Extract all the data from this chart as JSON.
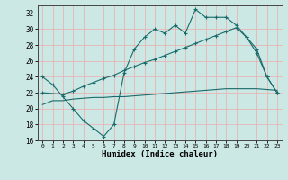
{
  "xlabel": "Humidex (Indice chaleur)",
  "bg_color": "#cce8e4",
  "grid_color": "#e8b4b4",
  "line_color": "#1a6b6b",
  "xlim": [
    -0.5,
    23.5
  ],
  "ylim": [
    16,
    33
  ],
  "xticks": [
    0,
    1,
    2,
    3,
    4,
    5,
    6,
    7,
    8,
    9,
    10,
    11,
    12,
    13,
    14,
    15,
    16,
    17,
    18,
    19,
    20,
    21,
    22,
    23
  ],
  "yticks": [
    16,
    18,
    20,
    22,
    24,
    26,
    28,
    30,
    32
  ],
  "line1_x": [
    0,
    1,
    2,
    3,
    4,
    5,
    6,
    7,
    8,
    9,
    10,
    11,
    12,
    13,
    14,
    15,
    16,
    17,
    18,
    19,
    20,
    21,
    22,
    23
  ],
  "line1_y": [
    24,
    23,
    21.5,
    20,
    18.5,
    17.5,
    16.5,
    18,
    24.5,
    27.5,
    29,
    30,
    29.5,
    30.5,
    29.5,
    32.5,
    31.5,
    31.5,
    31.5,
    30.5,
    29,
    27,
    24,
    22
  ],
  "line2_x": [
    0,
    2,
    3,
    4,
    5,
    6,
    7,
    8,
    9,
    10,
    11,
    12,
    13,
    14,
    15,
    16,
    17,
    18,
    19,
    20,
    21,
    22,
    23
  ],
  "line2_y": [
    22,
    21.8,
    22.2,
    22.8,
    23.3,
    23.8,
    24.2,
    24.8,
    25.3,
    25.8,
    26.2,
    26.7,
    27.2,
    27.7,
    28.2,
    28.7,
    29.2,
    29.7,
    30.2,
    29.0,
    27.5,
    24.0,
    22.0
  ],
  "line3_x": [
    0,
    1,
    2,
    3,
    4,
    5,
    6,
    7,
    8,
    9,
    10,
    11,
    12,
    13,
    14,
    15,
    16,
    17,
    18,
    19,
    20,
    21,
    22,
    23
  ],
  "line3_y": [
    20.5,
    21.0,
    21.0,
    21.2,
    21.3,
    21.4,
    21.4,
    21.5,
    21.5,
    21.6,
    21.7,
    21.8,
    21.9,
    22.0,
    22.1,
    22.2,
    22.3,
    22.4,
    22.5,
    22.5,
    22.5,
    22.5,
    22.4,
    22.3
  ]
}
